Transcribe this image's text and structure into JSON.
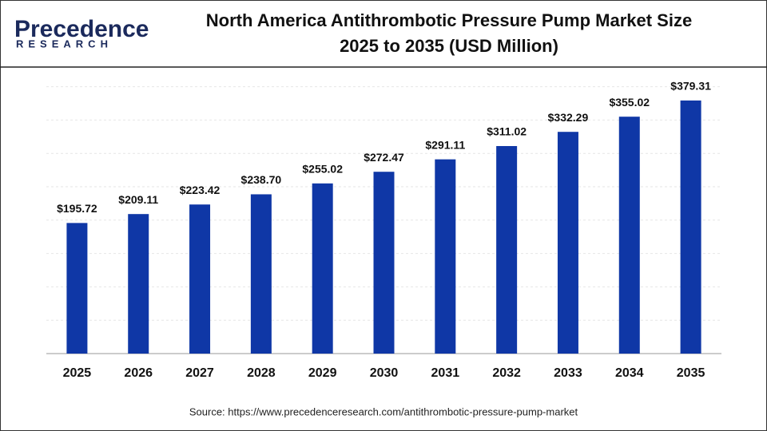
{
  "logo": {
    "name": "Precedence",
    "tagline": "RESEARCH"
  },
  "chart_data": {
    "type": "bar",
    "title": [
      "North America Antithrombotic Pressure Pump Market Size",
      "2025 to 2035 (USD Million)"
    ],
    "categories": [
      "2025",
      "2026",
      "2027",
      "2028",
      "2029",
      "2030",
      "2031",
      "2032",
      "2033",
      "2034",
      "2035"
    ],
    "values": [
      195.72,
      209.11,
      223.42,
      238.7,
      255.02,
      272.47,
      291.11,
      311.02,
      332.29,
      355.02,
      379.31
    ],
    "value_labels": [
      "$195.72",
      "$209.11",
      "$223.42",
      "$238.70",
      "$255.02",
      "$272.47",
      "$291.11",
      "$311.02",
      "$332.29",
      "$355.02",
      "$379.31"
    ],
    "color": "#0f37a6",
    "ylim": [
      0,
      400
    ],
    "yticks": [
      0,
      50,
      100,
      150,
      200,
      250,
      300,
      350,
      400
    ],
    "ytick_labels": false,
    "grid": true,
    "source": "Source: https://www.precedenceresearch.com/antithrombotic-pressure-pump-market"
  }
}
